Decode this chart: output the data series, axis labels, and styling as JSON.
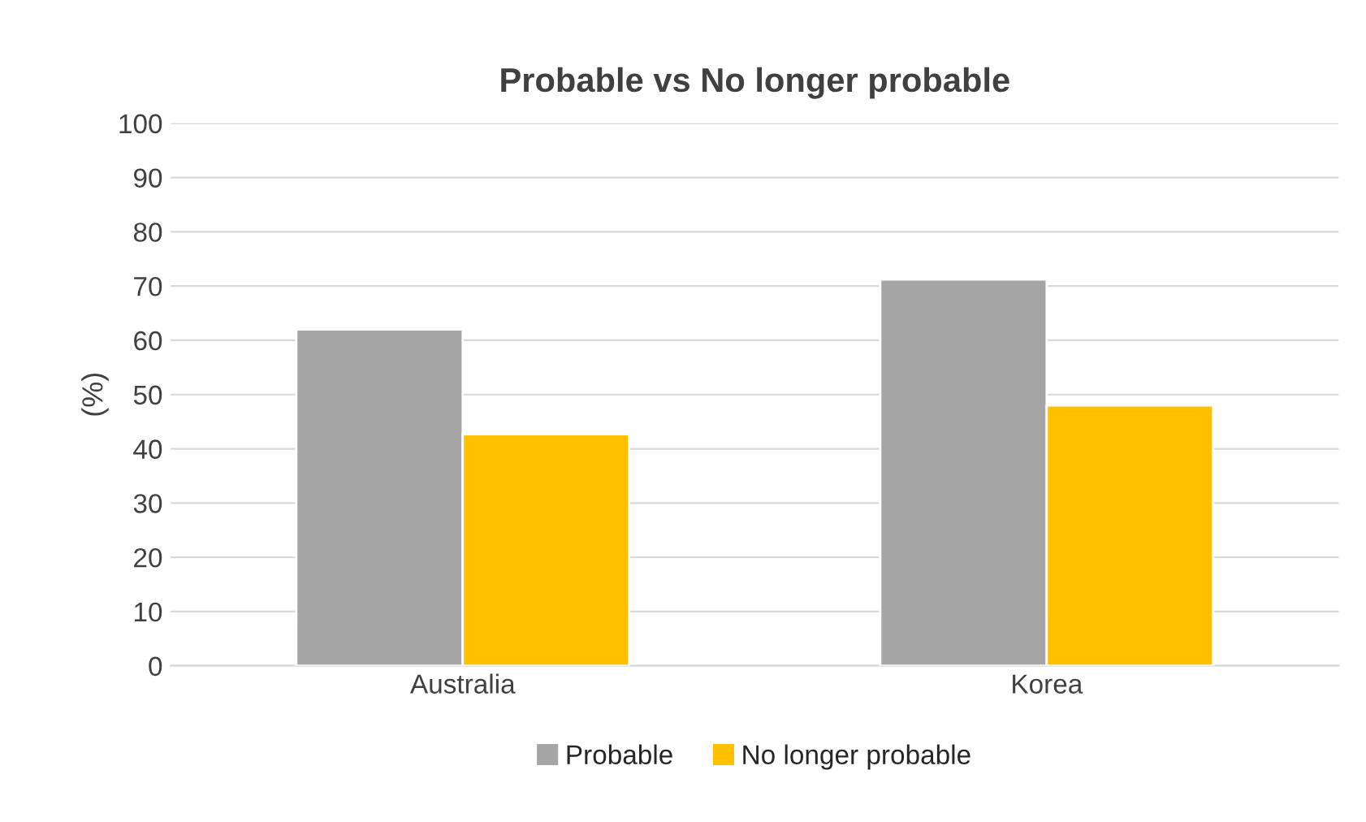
{
  "chart_data": {
    "type": "bar",
    "title": "Probable vs No longer probable",
    "ylabel": "(%)",
    "categories": [
      "Australia",
      "Korea"
    ],
    "series": [
      {
        "name": "Probable",
        "color": "#a5a5a5",
        "values": [
          62,
          71.2
        ]
      },
      {
        "name": "No longer probable",
        "color": "#ffc000",
        "values": [
          42.7,
          48
        ]
      }
    ],
    "ylim": [
      0,
      100
    ],
    "yticks": [
      0,
      10,
      20,
      30,
      40,
      50,
      60,
      70,
      80,
      90,
      100
    ],
    "grid": "y",
    "legend": "bottom"
  }
}
